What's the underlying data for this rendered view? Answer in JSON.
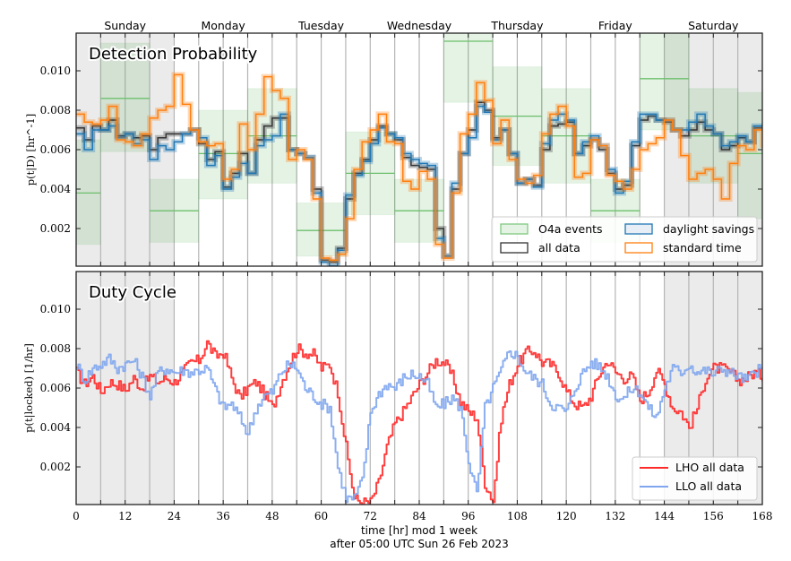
{
  "chart_data": [
    {
      "type": "line",
      "panel": "top",
      "title": "Detection Probability",
      "ylabel": "p(t|D) [hr^-1]",
      "xlabel": "",
      "xlim": [
        0,
        168
      ],
      "ylim": [
        0.0,
        0.012
      ],
      "yticks": [
        0.002,
        0.004,
        0.006,
        0.008,
        0.01
      ],
      "ytick_labels": [
        "0.002",
        "0.004",
        "0.006",
        "0.008",
        "0.010"
      ],
      "top_day_labels": [
        {
          "label": "Sunday",
          "x": 12
        },
        {
          "label": "Monday",
          "x": 36
        },
        {
          "label": "Tuesday",
          "x": 60
        },
        {
          "label": "Wednesday",
          "x": 84
        },
        {
          "label": "Thursday",
          "x": 108
        },
        {
          "label": "Friday",
          "x": 132
        },
        {
          "label": "Saturday",
          "x": 156
        }
      ],
      "grid": "vertical every 6 hr",
      "weekend_shading": [
        [
          0,
          24
        ],
        [
          144,
          168
        ]
      ],
      "legend": {
        "placement": "lower-right",
        "entries": [
          "O4a events",
          "all data",
          "daylight savings",
          "standard time"
        ]
      },
      "o4a_events": [
        {
          "t0": 0,
          "t1": 6,
          "value": 0.0038,
          "lo": 0.0012,
          "hi": 0.0065
        },
        {
          "t0": 6,
          "t1": 18,
          "value": 0.0086,
          "lo": 0.0059,
          "hi": 0.0114
        },
        {
          "t0": 18,
          "t1": 30,
          "value": 0.0029,
          "lo": 0.0013,
          "hi": 0.0045
        },
        {
          "t0": 30,
          "t1": 42,
          "value": 0.0058,
          "lo": 0.0035,
          "hi": 0.008
        },
        {
          "t0": 42,
          "t1": 54,
          "value": 0.0067,
          "lo": 0.0043,
          "hi": 0.0091
        },
        {
          "t0": 54,
          "t1": 66,
          "value": 0.0019,
          "lo": 0.0006,
          "hi": 0.0033
        },
        {
          "t0": 66,
          "t1": 78,
          "value": 0.0048,
          "lo": 0.0027,
          "hi": 0.0069
        },
        {
          "t0": 78,
          "t1": 90,
          "value": 0.0029,
          "lo": 0.0013,
          "hi": 0.0045
        },
        {
          "t0": 90,
          "t1": 102,
          "value": 0.0115,
          "lo": 0.0084,
          "hi": 0.0125
        },
        {
          "t0": 102,
          "t1": 114,
          "value": 0.0077,
          "lo": 0.0052,
          "hi": 0.0102
        },
        {
          "t0": 114,
          "t1": 126,
          "value": 0.0067,
          "lo": 0.0043,
          "hi": 0.0091
        },
        {
          "t0": 126,
          "t1": 138,
          "value": 0.0029,
          "lo": 0.0013,
          "hi": 0.0045
        },
        {
          "t0": 138,
          "t1": 150,
          "value": 0.0096,
          "lo": 0.007,
          "hi": 0.0122
        },
        {
          "t0": 150,
          "t1": 162,
          "value": 0.0067,
          "lo": 0.0043,
          "hi": 0.0091
        },
        {
          "t0": 162,
          "t1": 168,
          "value": 0.0058,
          "lo": 0.0025,
          "hi": 0.0089
        }
      ],
      "step_hours": 2,
      "series": [
        {
          "name": "all data",
          "color": "#333333",
          "values": [
            0.0071,
            0.0065,
            0.0072,
            0.007,
            0.0075,
            0.0067,
            0.0068,
            0.0066,
            0.0067,
            0.006,
            0.0066,
            0.0068,
            0.0068,
            0.0068,
            0.007,
            0.0063,
            0.0055,
            0.0059,
            0.0041,
            0.0048,
            0.0058,
            0.0048,
            0.0065,
            0.0072,
            0.0076,
            0.0076,
            0.006,
            0.0058,
            0.0056,
            0.004,
            0.0004,
            0.0003,
            0.001,
            0.0035,
            0.0048,
            0.0055,
            0.0065,
            0.0072,
            0.0068,
            0.0065,
            0.0056,
            0.0052,
            0.0051,
            0.005,
            0.002,
            0.0006,
            0.004,
            0.0058,
            0.007,
            0.0084,
            0.008,
            0.0066,
            0.007,
            0.0058,
            0.0043,
            0.0045,
            0.0042,
            0.006,
            0.0072,
            0.0073,
            0.0074,
            0.0058,
            0.0062,
            0.0065,
            0.006,
            0.0048,
            0.004,
            0.0042,
            0.0062,
            0.0075,
            0.0077,
            0.0075,
            0.0074,
            0.007,
            0.0067,
            0.007,
            0.0074,
            0.007,
            0.0068,
            0.006,
            0.0062,
            0.0066,
            0.0064,
            0.0071,
            0.0072
          ]
        },
        {
          "name": "daylight savings",
          "color": "#1f77b4",
          "values": [
            0.0068,
            0.006,
            0.007,
            0.007,
            0.0072,
            0.0066,
            0.0068,
            0.0063,
            0.0065,
            0.0055,
            0.0062,
            0.006,
            0.0064,
            0.0068,
            0.007,
            0.0066,
            0.0052,
            0.0057,
            0.004,
            0.0046,
            0.0053,
            0.0048,
            0.0062,
            0.0065,
            0.0067,
            0.0078,
            0.006,
            0.0058,
            0.0056,
            0.0038,
            0.0003,
            0.0001,
            0.0009,
            0.0037,
            0.0047,
            0.0054,
            0.0063,
            0.0071,
            0.0068,
            0.0066,
            0.0058,
            0.0055,
            0.0053,
            0.0052,
            0.0015,
            0.0006,
            0.0043,
            0.0058,
            0.0066,
            0.0082,
            0.0079,
            0.0065,
            0.007,
            0.0058,
            0.0043,
            0.0045,
            0.0041,
            0.0063,
            0.0075,
            0.0078,
            0.0075,
            0.0058,
            0.0064,
            0.0067,
            0.0062,
            0.005,
            0.0038,
            0.0044,
            0.0064,
            0.0078,
            0.0078,
            0.0075,
            0.0075,
            0.007,
            0.007,
            0.0074,
            0.0078,
            0.0072,
            0.0068,
            0.0062,
            0.0064,
            0.0067,
            0.0064,
            0.0072,
            0.0073
          ]
        },
        {
          "name": "standard time",
          "color": "#ff7f0e",
          "values": [
            0.0078,
            0.0074,
            0.0073,
            0.0075,
            0.0082,
            0.0065,
            0.0064,
            0.0062,
            0.0068,
            0.0076,
            0.008,
            0.0082,
            0.0098,
            0.0083,
            0.007,
            0.0064,
            0.0062,
            0.0063,
            0.0045,
            0.005,
            0.0073,
            0.006,
            0.0078,
            0.0097,
            0.009,
            0.0086,
            0.0055,
            0.006,
            0.0055,
            0.0035,
            0.0005,
            0.0004,
            0.0007,
            0.0025,
            0.005,
            0.0064,
            0.007,
            0.0078,
            0.0064,
            0.0063,
            0.0044,
            0.004,
            0.0049,
            0.0045,
            0.0012,
            0.0005,
            0.0038,
            0.0068,
            0.0078,
            0.0094,
            0.0085,
            0.0063,
            0.0075,
            0.0055,
            0.0045,
            0.0043,
            0.0047,
            0.0068,
            0.0078,
            0.0082,
            0.0072,
            0.0046,
            0.0048,
            0.0065,
            0.0062,
            0.0047,
            0.0044,
            0.004,
            0.005,
            0.006,
            0.0063,
            0.0066,
            0.0075,
            0.007,
            0.0057,
            0.0045,
            0.0048,
            0.005,
            0.0045,
            0.0035,
            0.0053,
            0.0062,
            0.006,
            0.007,
            0.0061
          ]
        }
      ]
    },
    {
      "type": "line",
      "panel": "bottom",
      "title": "Duty Cycle",
      "ylabel": "p(t|locked) [1/hr]",
      "xlabel": "time [hr] mod 1 week",
      "xlabel2": "after 05:00 UTC Sun 26 Feb 2023",
      "xlim": [
        0,
        168
      ],
      "ylim": [
        0.0,
        0.012
      ],
      "xticks": [
        0,
        12,
        24,
        36,
        48,
        60,
        72,
        84,
        96,
        108,
        120,
        132,
        144,
        156,
        168
      ],
      "xtick_labels": [
        "0",
        "12",
        "24",
        "36",
        "48",
        "60",
        "72",
        "84",
        "96",
        "108",
        "120",
        "132",
        "144",
        "156",
        "168"
      ],
      "yticks": [
        0.002,
        0.004,
        0.006,
        0.008,
        0.01
      ],
      "ytick_labels": [
        "0.002",
        "0.004",
        "0.006",
        "0.008",
        "0.010"
      ],
      "grid": "vertical every 6 hr",
      "weekend_shading": [
        [
          0,
          24
        ],
        [
          144,
          168
        ]
      ],
      "legend": {
        "placement": "lower-right",
        "entries": [
          "LHO all data",
          "LLO all data"
        ]
      },
      "step_hours": 2,
      "series": [
        {
          "name": "LHO all data",
          "color": "#ff2a2a",
          "values": [
            0.0068,
            0.0062,
            0.0066,
            0.0058,
            0.0063,
            0.0062,
            0.0059,
            0.0065,
            0.006,
            0.0066,
            0.0063,
            0.0065,
            0.0063,
            0.0068,
            0.0073,
            0.0074,
            0.0083,
            0.0076,
            0.0078,
            0.0065,
            0.0055,
            0.006,
            0.0063,
            0.0057,
            0.005,
            0.0062,
            0.0072,
            0.008,
            0.0078,
            0.0077,
            0.007,
            0.0072,
            0.0058,
            0.003,
            0.0004,
            0.0002,
            0.0002,
            0.0012,
            0.003,
            0.0042,
            0.0048,
            0.0055,
            0.0062,
            0.0068,
            0.0074,
            0.0073,
            0.0066,
            0.0053,
            0.0048,
            0.0045,
            0.0012,
            0.0003,
            0.0045,
            0.0062,
            0.0072,
            0.0078,
            0.0079,
            0.0073,
            0.0072,
            0.0068,
            0.0058,
            0.0052,
            0.005,
            0.0056,
            0.0067,
            0.0074,
            0.0068,
            0.0065,
            0.0066,
            0.0054,
            0.0058,
            0.0069,
            0.0062,
            0.005,
            0.0048,
            0.004,
            0.005,
            0.0065,
            0.007,
            0.007,
            0.0068,
            0.0064,
            0.0065,
            0.0068,
            0.0066,
            0.0058,
            0.0062,
            0.006
          ]
        },
        {
          "name": "LLO all data",
          "color": "#7fa6ee",
          "values": [
            0.0072,
            0.0064,
            0.007,
            0.0072,
            0.0075,
            0.007,
            0.0072,
            0.0074,
            0.0066,
            0.0056,
            0.0068,
            0.007,
            0.0068,
            0.0069,
            0.0068,
            0.0069,
            0.007,
            0.0059,
            0.005,
            0.0052,
            0.0045,
            0.0037,
            0.005,
            0.0056,
            0.0058,
            0.0068,
            0.0072,
            0.007,
            0.006,
            0.0056,
            0.0052,
            0.005,
            0.002,
            0.0004,
            0.0004,
            0.0013,
            0.0048,
            0.0057,
            0.0062,
            0.006,
            0.0065,
            0.0067,
            0.0066,
            0.0062,
            0.005,
            0.0052,
            0.0055,
            0.005,
            0.0023,
            0.0006,
            0.005,
            0.006,
            0.0069,
            0.0079,
            0.0076,
            0.0068,
            0.0065,
            0.0062,
            0.0052,
            0.005,
            0.0048,
            0.006,
            0.0068,
            0.0073,
            0.0071,
            0.0066,
            0.0056,
            0.0055,
            0.006,
            0.0058,
            0.005,
            0.0045,
            0.006,
            0.007,
            0.0068,
            0.0072,
            0.0068,
            0.0069,
            0.0067,
            0.007,
            0.0068,
            0.0066,
            0.0064,
            0.0068,
            0.007
          ]
        }
      ]
    }
  ]
}
